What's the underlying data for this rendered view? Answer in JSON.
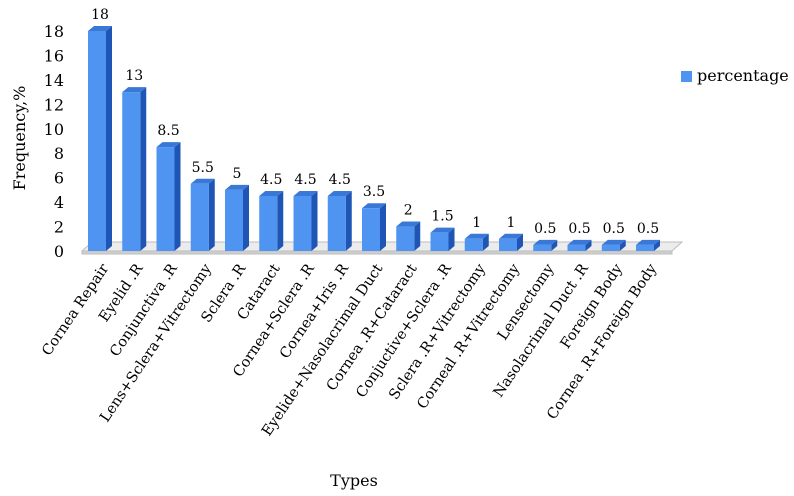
{
  "chart_data": {
    "type": "bar",
    "title": "",
    "xlabel": "Types",
    "ylabel": "Frequency,%",
    "ylim": [
      0,
      18
    ],
    "yticks": [
      0,
      2,
      4,
      6,
      8,
      10,
      12,
      14,
      16,
      18
    ],
    "grid": false,
    "legend_position": "right",
    "categories": [
      "Cornea Repair",
      "Eyelid .R",
      "Conjunctiva .R",
      "Lens+Sclera+Vitrectomy",
      "Sclera .R",
      "Cataract",
      "Cornea+Sclera .R",
      "Cornea+Iris .R",
      "Eyelide+Nasolacrimal Duct",
      "Cornea .R+Cataract",
      "Conjuctive+Sclera .R",
      "Sclera .R+Vitrectomy",
      "Corneal .R+Vitrectomy",
      "Lensectomy",
      "Nasolacrimal Duct .R",
      "Foreign Body",
      "Cornea .R+Foreign Body"
    ],
    "series": [
      {
        "name": "percentage",
        "color": "#4f94f0",
        "values": [
          18,
          13,
          8.5,
          5.5,
          5,
          4.5,
          4.5,
          4.5,
          3.5,
          2,
          1.5,
          1,
          1,
          0.5,
          0.5,
          0.5,
          0.5
        ],
        "value_labels": [
          "18",
          "13",
          "8.5",
          "5.5",
          "5",
          "4.5",
          "4.5",
          "4.5",
          "3.5",
          "2",
          "1.5",
          "1",
          "1",
          "0.5",
          "0.5",
          "0.5",
          "0.5"
        ]
      }
    ]
  }
}
